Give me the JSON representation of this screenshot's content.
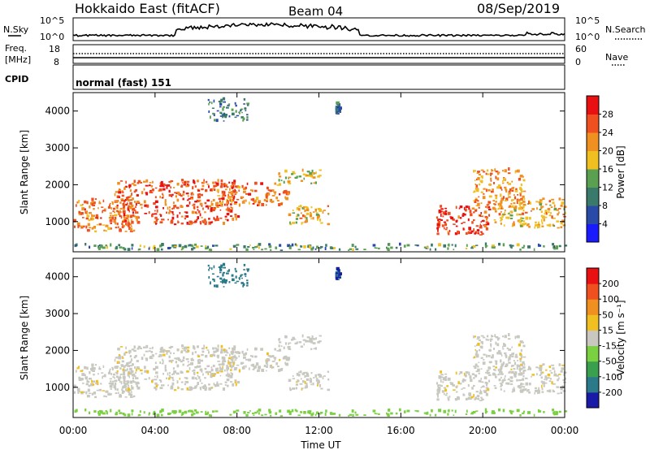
{
  "header": {
    "title": "Hokkaido East (fitACF)",
    "beam": "Beam 04",
    "date": "08/Sep/2019"
  },
  "noise_panel": {
    "left_label": "N.Sky",
    "right_label": "N.Search",
    "left_ticks": [
      "10^5",
      "10^0"
    ],
    "right_ticks": [
      "10^5",
      "10^0"
    ]
  },
  "freq_panel": {
    "left_label_1": "Freq.",
    "left_label_2": "[MHz]",
    "left_ticks": [
      "18",
      "8"
    ],
    "right_label": "Nave",
    "right_ticks": [
      "60",
      "0"
    ]
  },
  "cpid_panel": {
    "label": "CPID",
    "text": "normal (fast) 151"
  },
  "axes": {
    "xlabel": "Time UT",
    "ylabel": "Slant Range [km]",
    "x_ticks": [
      "00:00",
      "04:00",
      "08:00",
      "12:00",
      "16:00",
      "20:00",
      "00:00"
    ],
    "y_ticks": [
      "1000",
      "2000",
      "3000",
      "4000"
    ]
  },
  "power_scale": {
    "label": "Power [dB]",
    "ticks": [
      "4",
      "8",
      "12",
      "16",
      "20",
      "24",
      "28"
    ],
    "colors": [
      "#1a1aff",
      "#2a4aa8",
      "#3a7a6a",
      "#5aa050",
      "#f0c020",
      "#f09020",
      "#f05020",
      "#e81010"
    ]
  },
  "velocity_scale": {
    "label": "Velocity [m s⁻¹]",
    "ticks": [
      "200",
      "100",
      "50",
      "15",
      "-15",
      "-50",
      "-100",
      "-200"
    ],
    "colors": [
      "#1a1aa8",
      "#2a7a8a",
      "#3aa050",
      "#7ad040",
      "#c8c8c0",
      "#f0c020",
      "#f09020",
      "#f05020",
      "#e81010"
    ]
  },
  "chart_data": {
    "type": "heatmap",
    "x_range_hours": [
      0,
      24
    ],
    "y_range_km": [
      180,
      4500
    ],
    "panels": [
      {
        "name": "Power [dB]",
        "value_range": [
          0,
          30
        ]
      },
      {
        "name": "Velocity [m s⁻¹]",
        "value_range": [
          -250,
          250
        ]
      }
    ],
    "echo_regions": [
      {
        "t0": 0.0,
        "t1": 3.0,
        "r0": 700,
        "r1": 1600,
        "power": 24,
        "velocity": -5
      },
      {
        "t0": 2.0,
        "t1": 8.0,
        "r0": 900,
        "r1": 2100,
        "power": 26,
        "velocity": -5
      },
      {
        "t0": 7.0,
        "t1": 10.5,
        "r0": 1400,
        "r1": 2000,
        "power": 24,
        "velocity": -5
      },
      {
        "t0": 10.0,
        "t1": 12.0,
        "r0": 2000,
        "r1": 2400,
        "power": 18,
        "velocity": 0
      },
      {
        "t0": 10.5,
        "t1": 12.5,
        "r0": 900,
        "r1": 1400,
        "power": 20,
        "velocity": -5
      },
      {
        "t0": 17.7,
        "t1": 20.3,
        "r0": 600,
        "r1": 1400,
        "power": 28,
        "velocity": -5
      },
      {
        "t0": 19.5,
        "t1": 22.0,
        "r0": 1300,
        "r1": 2400,
        "power": 22,
        "velocity": -5
      },
      {
        "t0": 20.5,
        "t1": 24.0,
        "r0": 800,
        "r1": 1600,
        "power": 20,
        "velocity": -5
      },
      {
        "t0": 0.0,
        "t1": 24.0,
        "r0": 200,
        "r1": 350,
        "power": 12,
        "velocity": 30
      },
      {
        "t0": 6.5,
        "t1": 8.5,
        "r0": 3700,
        "r1": 4300,
        "power": 10,
        "velocity": 150
      },
      {
        "t0": 12.8,
        "t1": 13.0,
        "r0": 3900,
        "r1": 4200,
        "power": 8,
        "velocity": 200
      }
    ]
  }
}
